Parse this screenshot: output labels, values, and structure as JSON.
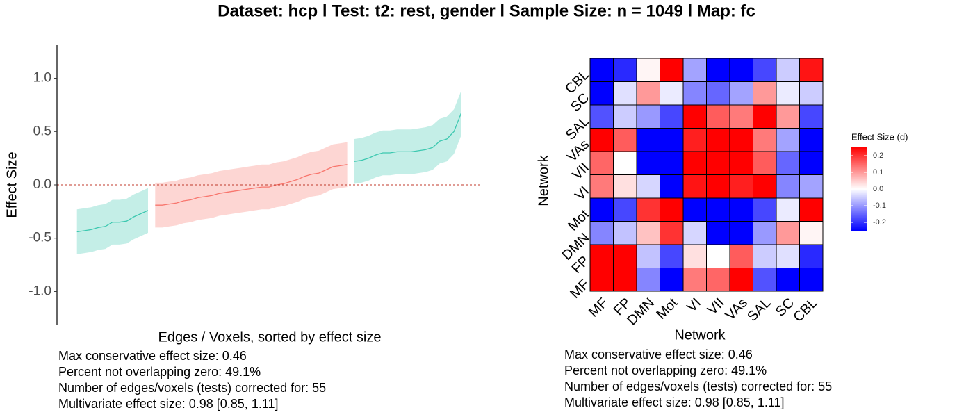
{
  "title": "Dataset: hcp   l  Test: t2: rest, gender   l   Sample Size: n = 1049   l  Map: fc",
  "chart_data": [
    {
      "type": "line",
      "ylabel": "Effect Size",
      "xlabel": "Edges / Voxels, sorted by effect size",
      "x": [
        1,
        2,
        3,
        4,
        5,
        6,
        7,
        8,
        9,
        10,
        11,
        12,
        13,
        14,
        15,
        16,
        17,
        18,
        19,
        20,
        21,
        22,
        23,
        24,
        25,
        26,
        27,
        28,
        29,
        30,
        31,
        32,
        33,
        34,
        35,
        36,
        37,
        38,
        39,
        40,
        41,
        42,
        43,
        44,
        45,
        46,
        47,
        48,
        49,
        50,
        51,
        52,
        53,
        54,
        55
      ],
      "values": [
        -0.44,
        -0.43,
        -0.42,
        -0.4,
        -0.39,
        -0.35,
        -0.35,
        -0.34,
        -0.3,
        -0.27,
        -0.24,
        -0.19,
        -0.19,
        -0.18,
        -0.17,
        -0.15,
        -0.14,
        -0.12,
        -0.11,
        -0.1,
        -0.08,
        -0.07,
        -0.06,
        -0.05,
        -0.04,
        -0.03,
        -0.02,
        -0.02,
        0.0,
        0.01,
        0.03,
        0.05,
        0.08,
        0.1,
        0.11,
        0.14,
        0.17,
        0.18,
        0.19,
        0.22,
        0.23,
        0.25,
        0.28,
        0.3,
        0.3,
        0.31,
        0.31,
        0.31,
        0.32,
        0.33,
        0.35,
        0.41,
        0.43,
        0.5,
        0.67
      ],
      "lower": [
        -0.65,
        -0.64,
        -0.63,
        -0.61,
        -0.6,
        -0.56,
        -0.56,
        -0.55,
        -0.51,
        -0.48,
        -0.45,
        -0.4,
        -0.4,
        -0.39,
        -0.38,
        -0.36,
        -0.35,
        -0.33,
        -0.32,
        -0.31,
        -0.29,
        -0.28,
        -0.27,
        -0.26,
        -0.25,
        -0.24,
        -0.23,
        -0.23,
        -0.21,
        -0.2,
        -0.18,
        -0.16,
        -0.13,
        -0.11,
        -0.1,
        -0.07,
        -0.04,
        -0.03,
        -0.02,
        0.01,
        0.02,
        0.04,
        0.07,
        0.09,
        0.09,
        0.1,
        0.1,
        0.1,
        0.11,
        0.12,
        0.14,
        0.2,
        0.22,
        0.29,
        0.46
      ],
      "upper": [
        -0.23,
        -0.22,
        -0.21,
        -0.19,
        -0.18,
        -0.14,
        -0.14,
        -0.13,
        -0.09,
        -0.06,
        -0.03,
        0.02,
        0.02,
        0.03,
        0.04,
        0.06,
        0.07,
        0.09,
        0.1,
        0.11,
        0.13,
        0.14,
        0.15,
        0.16,
        0.17,
        0.18,
        0.19,
        0.19,
        0.21,
        0.22,
        0.24,
        0.26,
        0.29,
        0.31,
        0.32,
        0.35,
        0.38,
        0.39,
        0.4,
        0.43,
        0.44,
        0.46,
        0.49,
        0.51,
        0.51,
        0.52,
        0.52,
        0.52,
        0.53,
        0.54,
        0.56,
        0.62,
        0.64,
        0.71,
        0.88
      ],
      "color": "#3cc8b0",
      "color_overlap": "#f8766d",
      "reference_line": 0,
      "reference_color": "#c0392b",
      "xlim": [
        -1.8,
        57.6
      ],
      "ylim": [
        -1.31,
        1.31
      ],
      "yticks": [
        {
          "value": -1.0,
          "label": "-1.0"
        },
        -0.5,
        {
          "value": 0,
          "label": "0.0"
        },
        0.5,
        {
          "value": 1.0,
          "label": "1.0"
        }
      ],
      "annotations": [
        "Max conservative effect size: 0.46",
        "Percent not overlapping zero: 49.1%",
        "Number of edges/voxels (tests) corrected for: 55",
        "Multivariate effect size: 0.98 [0.85, 1.11]"
      ]
    },
    {
      "type": "heatmap",
      "xlabel": "Network",
      "ylabel": "Network",
      "legend_title": "Effect Size (d)",
      "categories": [
        "MF",
        "FP",
        "DMN",
        "Mot",
        "VI",
        "VII",
        "VAs",
        "SAL",
        "SC",
        "CBL"
      ],
      "values": [
        [
          0.25,
          0.25,
          -0.12,
          -0.25,
          0.13,
          0.15,
          0.25,
          -0.17,
          -0.25,
          -0.25
        ],
        [
          0.25,
          0.25,
          -0.06,
          -0.18,
          0.03,
          0.0,
          0.16,
          -0.05,
          -0.03,
          -0.21
        ],
        [
          -0.12,
          -0.06,
          0.06,
          0.2,
          -0.04,
          -0.25,
          -0.25,
          -0.1,
          0.1,
          0.01
        ],
        [
          -0.25,
          -0.18,
          0.2,
          0.25,
          -0.25,
          -0.25,
          -0.25,
          -0.18,
          -0.02,
          0.25
        ],
        [
          0.13,
          0.03,
          -0.04,
          -0.25,
          0.23,
          0.25,
          0.22,
          0.25,
          -0.12,
          -0.09
        ],
        [
          0.15,
          0.0,
          -0.25,
          -0.25,
          0.25,
          0.25,
          0.25,
          0.16,
          -0.15,
          -0.25
        ],
        [
          0.25,
          0.16,
          -0.25,
          -0.25,
          0.22,
          0.25,
          0.25,
          0.13,
          -0.09,
          -0.25
        ],
        [
          -0.17,
          -0.05,
          -0.1,
          -0.18,
          0.25,
          0.16,
          0.13,
          0.25,
          0.1,
          -0.18
        ],
        [
          -0.25,
          -0.03,
          0.1,
          -0.02,
          -0.12,
          -0.15,
          -0.09,
          0.1,
          -0.02,
          -0.05
        ],
        [
          -0.25,
          -0.21,
          0.01,
          0.25,
          -0.09,
          -0.25,
          -0.25,
          -0.18,
          -0.05,
          0.23
        ]
      ],
      "colorscale": [
        "#0000ff",
        "#ffffff",
        "#ff0000"
      ],
      "zlim": [
        -0.25,
        0.25
      ],
      "zticks": [
        -0.2,
        -0.1,
        {
          "value": 0,
          "label": "0.0"
        },
        0.1,
        0.2
      ],
      "annotations": [
        "Max conservative effect size: 0.46",
        "Percent not overlapping zero: 49.1%",
        "Number of edges/voxels (tests) corrected for: 55",
        "Multivariate effect size: 0.98 [0.85, 1.11]"
      ]
    }
  ]
}
